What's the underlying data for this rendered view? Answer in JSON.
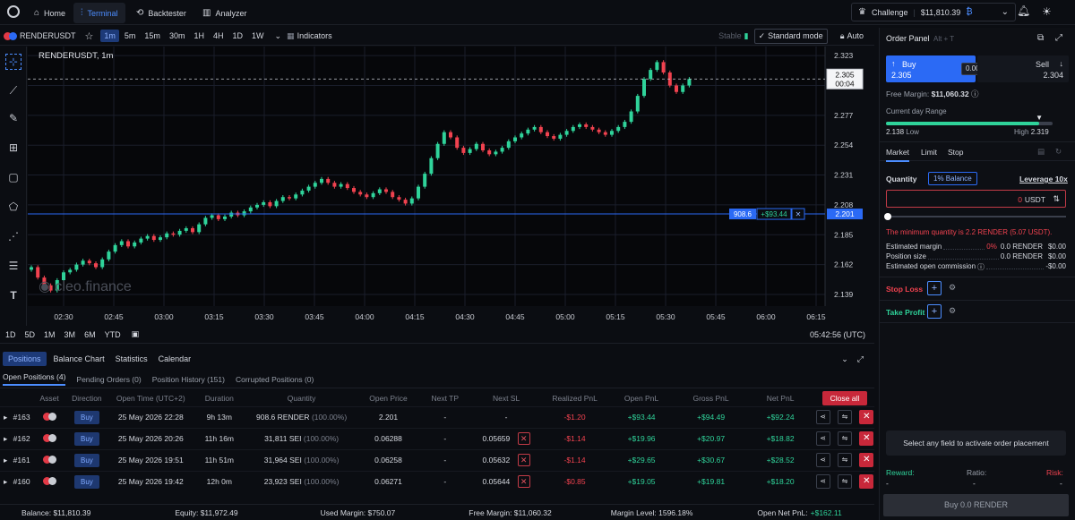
{
  "nav": {
    "tabs": [
      {
        "label": "Home",
        "icon": "home-icon"
      },
      {
        "label": "Terminal",
        "icon": "terminal-icon"
      },
      {
        "label": "Backtester",
        "icon": "backtester-icon"
      },
      {
        "label": "Analyzer",
        "icon": "analyzer-icon"
      }
    ],
    "active": "Terminal",
    "challenge_label": "Challenge",
    "challenge_value": "$11,810.39"
  },
  "toolbar": {
    "symbol": "RENDERUSDT",
    "timeframes": [
      "1m",
      "5m",
      "15m",
      "30m",
      "1H",
      "4H",
      "1D",
      "1W"
    ],
    "active_tf": "1m",
    "indicators_label": "Indicators",
    "stable_label": "Stable",
    "standard_mode_label": "Standard mode",
    "auto_label": "Auto"
  },
  "chart_data": {
    "type": "candlestick",
    "title": "RENDERUSDT, 1m",
    "watermark": "cleo.finance",
    "x_ticks": [
      "02:30",
      "02:45",
      "03:00",
      "03:15",
      "03:30",
      "03:45",
      "04:00",
      "04:15",
      "04:30",
      "04:45",
      "05:00",
      "05:15",
      "05:30",
      "05:45",
      "06:00",
      "06:15"
    ],
    "y_ticks": [
      "2.323",
      "2.300",
      "2.277",
      "2.254",
      "2.231",
      "2.208",
      "2.185",
      "2.162",
      "2.139"
    ],
    "ylim": [
      2.13,
      2.33
    ],
    "current_price": "2.305",
    "countdown": "00:04",
    "position_line_price": "2.201",
    "position_qty": "908.6",
    "position_pnl": "+$93.44",
    "closes": [
      2.16,
      2.152,
      2.146,
      2.142,
      2.15,
      2.156,
      2.158,
      2.162,
      2.165,
      2.163,
      2.16,
      2.166,
      2.172,
      2.177,
      2.18,
      2.176,
      2.179,
      2.182,
      2.184,
      2.181,
      2.183,
      2.186,
      2.185,
      2.188,
      2.19,
      2.187,
      2.193,
      2.198,
      2.2,
      2.197,
      2.199,
      2.202,
      2.2,
      2.203,
      2.206,
      2.208,
      2.21,
      2.207,
      2.211,
      2.214,
      2.213,
      2.216,
      2.219,
      2.222,
      2.225,
      2.228,
      2.225,
      2.222,
      2.224,
      2.221,
      2.218,
      2.216,
      2.214,
      2.217,
      2.22,
      2.218,
      2.214,
      2.212,
      2.209,
      2.213,
      2.222,
      2.232,
      2.244,
      2.255,
      2.264,
      2.26,
      2.252,
      2.248,
      2.251,
      2.255,
      2.25,
      2.247,
      2.249,
      2.252,
      2.257,
      2.26,
      2.263,
      2.266,
      2.268,
      2.264,
      2.261,
      2.259,
      2.262,
      2.265,
      2.268,
      2.27,
      2.268,
      2.266,
      2.264,
      2.262,
      2.265,
      2.268,
      2.272,
      2.28,
      2.292,
      2.305,
      2.312,
      2.318,
      2.31,
      2.3,
      2.295,
      2.3,
      2.305
    ],
    "x_axis_time": "05:42:56 (UTC)"
  },
  "range_bar": {
    "ranges": [
      "1D",
      "5D",
      "1M",
      "3M",
      "6M",
      "YTD"
    ]
  },
  "bottom_tabs": [
    "Positions",
    "Balance Chart",
    "Statistics",
    "Calendar"
  ],
  "sub_tabs": [
    "Open Positions (4)",
    "Pending Orders (0)",
    "Position History (151)",
    "Corrupted Positions (0)"
  ],
  "table": {
    "headers": [
      "Asset",
      "Direction",
      "Open Time (UTC+2)",
      "Duration",
      "Quantity",
      "Open Price",
      "Next TP",
      "Next SL",
      "Realized PnL",
      "Open PnL",
      "Gross PnL",
      "Net PnL"
    ],
    "close_all_label": "Close all",
    "rows": [
      {
        "id": "#163",
        "dir": "Buy",
        "time": "25 May 2026 22:28",
        "dur": "9h 13m",
        "qty": "908.6",
        "unit": "RENDER",
        "pct": "(100.00%)",
        "open": "2.201",
        "tp": "-",
        "sl": "-",
        "rpnl": "-$1.20",
        "opnl": "+$93.44",
        "gpnl": "+$94.49",
        "npnl": "+$92.24"
      },
      {
        "id": "#162",
        "dir": "Buy",
        "time": "25 May 2026 20:26",
        "dur": "11h 16m",
        "qty": "31,811",
        "unit": "SEI",
        "pct": "(100.00%)",
        "open": "0.06288",
        "tp": "-",
        "sl": "0.05659",
        "rpnl": "-$1.14",
        "opnl": "+$19.96",
        "gpnl": "+$20.97",
        "npnl": "+$18.82"
      },
      {
        "id": "#161",
        "dir": "Buy",
        "time": "25 May 2026 19:51",
        "dur": "11h 51m",
        "qty": "31,964",
        "unit": "SEI",
        "pct": "(100.00%)",
        "open": "0.06258",
        "tp": "-",
        "sl": "0.05632",
        "rpnl": "-$1.14",
        "opnl": "+$29.65",
        "gpnl": "+$30.67",
        "npnl": "+$28.52"
      },
      {
        "id": "#160",
        "dir": "Buy",
        "time": "25 May 2026 19:42",
        "dur": "12h 0m",
        "qty": "23,923",
        "unit": "SEI",
        "pct": "(100.00%)",
        "open": "0.06271",
        "tp": "-",
        "sl": "0.05644",
        "rpnl": "-$0.85",
        "opnl": "+$19.05",
        "gpnl": "+$19.81",
        "npnl": "+$18.20"
      }
    ]
  },
  "footer": {
    "balance": "Balance: $11,810.39",
    "equity": "Equity: $11,972.49",
    "used_margin": "Used Margin: $750.07",
    "free_margin": "Free Margin: $11,060.32",
    "margin_level": "Margin Level: 1596.18%",
    "open_net_pnl_label": "Open Net PnL:",
    "open_net_pnl": "+$162.11"
  },
  "order_panel": {
    "title": "Order Panel",
    "shortcut": "Alt + T",
    "buy_label": "Buy",
    "buy_price": "2.305",
    "spread": "0.001",
    "sell_label": "Sell",
    "sell_price": "2.304",
    "free_margin_label": "Free Margin:",
    "free_margin": "$11,060.32",
    "range_label": "Current day Range",
    "range_low": "2.138",
    "range_low_label": "Low",
    "range_high_label": "High",
    "range_high": "2.319",
    "range_position": 0.92,
    "order_types": [
      "Market",
      "Limit",
      "Stop"
    ],
    "quantity_label": "Quantity",
    "balance_pct": "1% Balance",
    "leverage": "Leverage 10x",
    "qty_value": "0",
    "qty_unit": "USDT",
    "min_qty_msg": "The minimum quantity is 2.2 RENDER (5.07 USDT).",
    "est_margin_label": "Estimated margin",
    "est_margin_pct": "0%",
    "est_margin_render": "0.0 RENDER",
    "est_margin_usd": "$0.00",
    "pos_size_label": "Position size",
    "pos_size_render": "0.0 RENDER",
    "pos_size_usd": "$0.00",
    "commission_label": "Estimated open commission",
    "commission": "-$0.00",
    "stop_loss_label": "Stop Loss",
    "take_profit_label": "Take Profit",
    "activate_msg": "Select any field to activate order placement",
    "reward_label": "Reward:",
    "ratio_label": "Ratio:",
    "risk_label": "Risk:",
    "reward_val": "-",
    "ratio_val": "-",
    "risk_val": "-",
    "submit_label": "Buy 0.0 RENDER"
  }
}
